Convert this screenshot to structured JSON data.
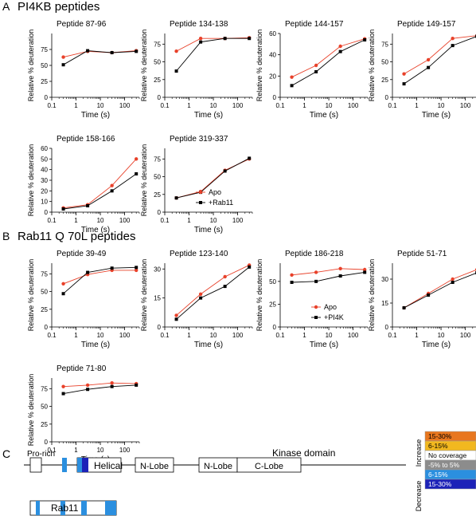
{
  "sections": {
    "A": {
      "letter": "A",
      "title": "PI4KB peptides"
    },
    "B": {
      "letter": "B",
      "title": "Rab11 Q 70L peptides"
    },
    "C": {
      "letter": "C"
    }
  },
  "colors": {
    "apo": "#e8412a",
    "complex": "#000000"
  },
  "chart_data": [
    {
      "type": "line",
      "title": "Peptide 87-96",
      "xlabel": "Time (s)",
      "ylabel": "Relative % deuteration",
      "xscale": "log",
      "x": [
        0.3,
        3,
        30,
        300
      ],
      "xticks": [
        "0.1",
        "1",
        "10",
        "100"
      ],
      "ylim": [
        0,
        100
      ],
      "yticks": [
        "0",
        "25",
        "50",
        "75"
      ],
      "series": [
        {
          "name": "Apo",
          "values": [
            63,
            72,
            70,
            73
          ]
        },
        {
          "name": "+Rab11",
          "values": [
            51,
            73,
            70,
            72
          ]
        }
      ]
    },
    {
      "type": "line",
      "title": "Peptide 134-138",
      "xlabel": "Time (s)",
      "ylabel": "Relative % deuteration",
      "xscale": "log",
      "x": [
        0.3,
        3,
        30,
        300
      ],
      "xticks": [
        "0.1",
        "1",
        "10",
        "100"
      ],
      "ylim": [
        0,
        90
      ],
      "yticks": [
        "0",
        "25",
        "50",
        "75"
      ],
      "series": [
        {
          "name": "Apo",
          "values": [
            65,
            83,
            83,
            84
          ]
        },
        {
          "name": "+Rab11",
          "values": [
            37,
            78,
            83,
            83
          ]
        }
      ]
    },
    {
      "type": "line",
      "title": "Peptide 144-157",
      "xlabel": "Time (s)",
      "ylabel": "Relative % deuteration",
      "xscale": "log",
      "x": [
        0.3,
        3,
        30,
        300
      ],
      "xticks": [
        "0.1",
        "1",
        "10",
        "100"
      ],
      "ylim": [
        0,
        60
      ],
      "yticks": [
        "0",
        "20",
        "40",
        "60"
      ],
      "series": [
        {
          "name": "Apo",
          "values": [
            19,
            30,
            48,
            55
          ]
        },
        {
          "name": "+Rab11",
          "values": [
            11,
            24,
            43,
            54
          ]
        }
      ]
    },
    {
      "type": "line",
      "title": "Peptide 149-157",
      "xlabel": "Time (s)",
      "ylabel": "Relative % deuteration",
      "xscale": "log",
      "x": [
        0.3,
        3,
        30,
        300
      ],
      "xticks": [
        "0.1",
        "1",
        "10",
        "100"
      ],
      "ylim": [
        0,
        90
      ],
      "yticks": [
        "0",
        "25",
        "50",
        "75"
      ],
      "series": [
        {
          "name": "Apo",
          "values": [
            33,
            53,
            83,
            87
          ]
        },
        {
          "name": "+Rab11",
          "values": [
            19,
            42,
            73,
            86
          ]
        }
      ]
    },
    {
      "type": "line",
      "title": "Peptide 158-166",
      "xlabel": "Time (s)",
      "ylabel": "Relative % deuteration",
      "xscale": "log",
      "x": [
        0.3,
        3,
        30,
        300
      ],
      "xticks": [
        "0.1",
        "1",
        "10",
        "100"
      ],
      "ylim": [
        0,
        60
      ],
      "yticks": [
        "0",
        "10",
        "20",
        "30",
        "40",
        "50",
        "60"
      ],
      "series": [
        {
          "name": "Apo",
          "values": [
            4,
            7,
            25,
            50
          ]
        },
        {
          "name": "+Rab11",
          "values": [
            3,
            6,
            20,
            36
          ]
        }
      ]
    },
    {
      "type": "line",
      "title": "Peptide 319-337",
      "xlabel": "Time (s)",
      "ylabel": "Relative % deuteration",
      "xscale": "log",
      "x": [
        0.3,
        3,
        30,
        300
      ],
      "xticks": [
        "0.1",
        "1",
        "10",
        "100"
      ],
      "ylim": [
        0,
        90
      ],
      "yticks": [
        "0",
        "25",
        "50",
        "75"
      ],
      "series": [
        {
          "name": "Apo",
          "values": [
            20,
            29,
            59,
            75
          ]
        },
        {
          "name": "+Rab11",
          "values": [
            20,
            28,
            58,
            76
          ]
        }
      ],
      "legend": [
        "Apo",
        "+Rab11"
      ]
    },
    {
      "type": "line",
      "title": "Peptide 39-49",
      "xlabel": "Time (s)",
      "ylabel": "Relative % deuteration",
      "xscale": "log",
      "x": [
        0.3,
        3,
        30,
        300
      ],
      "xticks": [
        "0.1",
        "1",
        "10",
        "100"
      ],
      "ylim": [
        0,
        90
      ],
      "yticks": [
        "0",
        "25",
        "50",
        "75"
      ],
      "series": [
        {
          "name": "Apo",
          "values": [
            61,
            74,
            80,
            80
          ]
        },
        {
          "name": "+PI4K",
          "values": [
            47,
            77,
            83,
            84
          ]
        }
      ]
    },
    {
      "type": "line",
      "title": "Peptide 123-140",
      "xlabel": "Time (s)",
      "ylabel": "Relative % deuteration",
      "xscale": "log",
      "x": [
        0.3,
        3,
        30,
        300
      ],
      "xticks": [
        "0.1",
        "1",
        "10",
        "100"
      ],
      "ylim": [
        0,
        33
      ],
      "yticks": [
        "0",
        "15",
        "30"
      ],
      "series": [
        {
          "name": "Apo",
          "values": [
            6,
            17,
            26,
            32
          ]
        },
        {
          "name": "+PI4K",
          "values": [
            4,
            15,
            21,
            31
          ]
        }
      ]
    },
    {
      "type": "line",
      "title": "Peptide 186-218",
      "xlabel": "Time (s)",
      "ylabel": "Relative % deuteration",
      "xscale": "log",
      "x": [
        0.3,
        3,
        30,
        300
      ],
      "xticks": [
        "0.1",
        "1",
        "10",
        "100"
      ],
      "ylim": [
        0,
        70
      ],
      "yticks": [
        "0",
        "25",
        "50"
      ],
      "series": [
        {
          "name": "Apo",
          "values": [
            57,
            60,
            64,
            63
          ]
        },
        {
          "name": "+PI4K",
          "values": [
            49,
            50,
            56,
            60
          ]
        }
      ],
      "legend": [
        "Apo",
        "+PI4K"
      ]
    },
    {
      "type": "line",
      "title": "Peptide 51-71",
      "xlabel": "Time (s)",
      "ylabel": "Relative % deuteration",
      "xscale": "log",
      "x": [
        0.3,
        3,
        30,
        300
      ],
      "xticks": [
        "0.1",
        "1",
        "10",
        "100"
      ],
      "ylim": [
        0,
        40
      ],
      "yticks": [
        "0",
        "15",
        "30"
      ],
      "series": [
        {
          "name": "Apo",
          "values": [
            12,
            21,
            30,
            36
          ]
        },
        {
          "name": "+PI4K",
          "values": [
            12,
            20,
            28,
            34
          ]
        }
      ]
    },
    {
      "type": "line",
      "title": "Peptide 71-80",
      "xlabel": "Time (s)",
      "ylabel": "Relative % deuteration",
      "xscale": "log",
      "x": [
        0.3,
        3,
        30,
        300
      ],
      "xticks": [
        "0.1",
        "1",
        "10",
        "100"
      ],
      "ylim": [
        0,
        90
      ],
      "yticks": [
        "0",
        "25",
        "50",
        "75"
      ],
      "series": [
        {
          "name": "Apo",
          "values": [
            78,
            80,
            83,
            82
          ]
        },
        {
          "name": "+PI4K",
          "values": [
            68,
            74,
            78,
            80
          ]
        }
      ]
    }
  ],
  "domain_map": {
    "pi4kb": {
      "pro_rich": "Pro-rich",
      "helical": "Helical",
      "helical_prefix": "H",
      "n_lobe_1": "N-Lobe",
      "n_lobe_2": "N-Lobe",
      "c_lobe": "C-Lobe",
      "kinase_domain": "Kinase domain"
    },
    "rab11": {
      "label": "Rab11"
    }
  },
  "color_key": {
    "increase_label": "Increase",
    "decrease_label": "Decrease",
    "items": [
      {
        "label": "15-30%",
        "color": "#e8771f"
      },
      {
        "label": "6-15%",
        "color": "#f2b81f"
      },
      {
        "label": "No coverage",
        "color": "#ffffff"
      },
      {
        "label": "-5% to 5%",
        "color": "#8c8c8c"
      },
      {
        "label": "6-15%",
        "color": "#2b8fdf"
      },
      {
        "label": "15-30%",
        "color": "#1c22b8"
      }
    ]
  }
}
